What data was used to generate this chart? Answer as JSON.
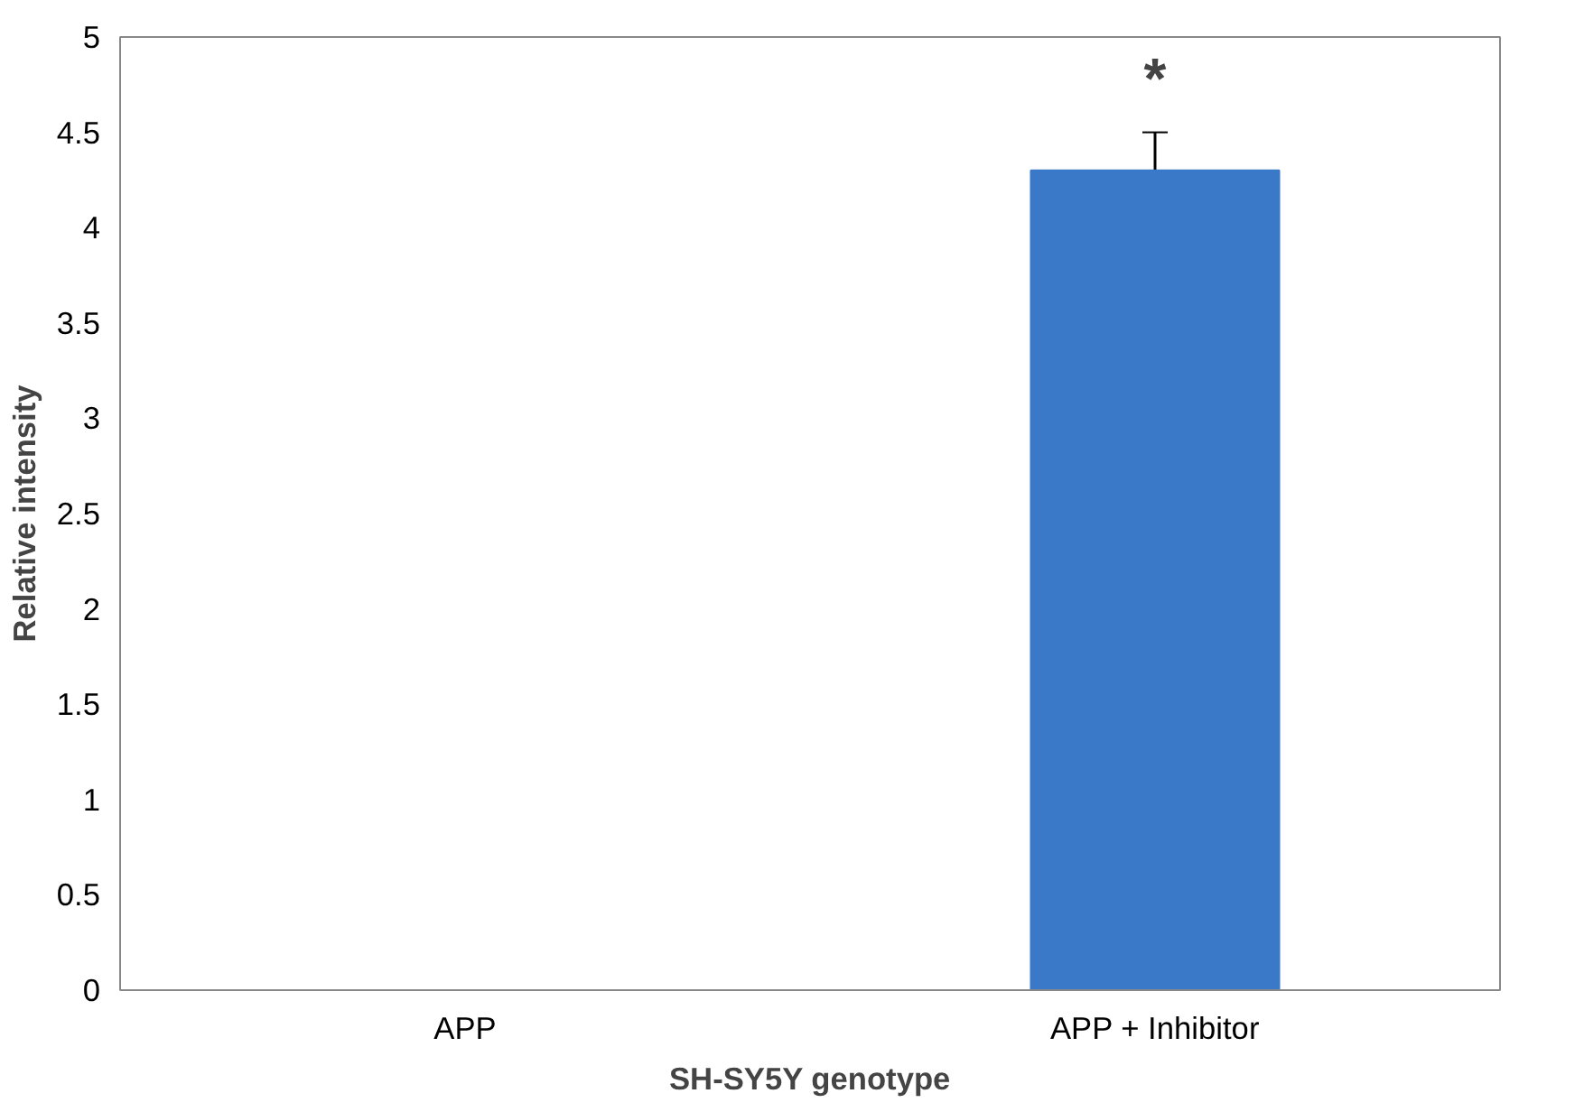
{
  "chart_data": {
    "type": "bar",
    "xlabel": "SH-SY5Y genotype",
    "ylabel": "Relative intensity",
    "categories": [
      "APP",
      "APP + Inhibitor"
    ],
    "values": [
      0,
      4.3
    ],
    "errors": [
      null,
      0.2
    ],
    "color": "#3a78c8",
    "ylim": [
      0,
      5
    ],
    "yticks": [
      0,
      0.5,
      1,
      1.5,
      2,
      2.5,
      3,
      3.5,
      4,
      4.5,
      5
    ],
    "annotations": [
      "*"
    ],
    "grid": false
  }
}
